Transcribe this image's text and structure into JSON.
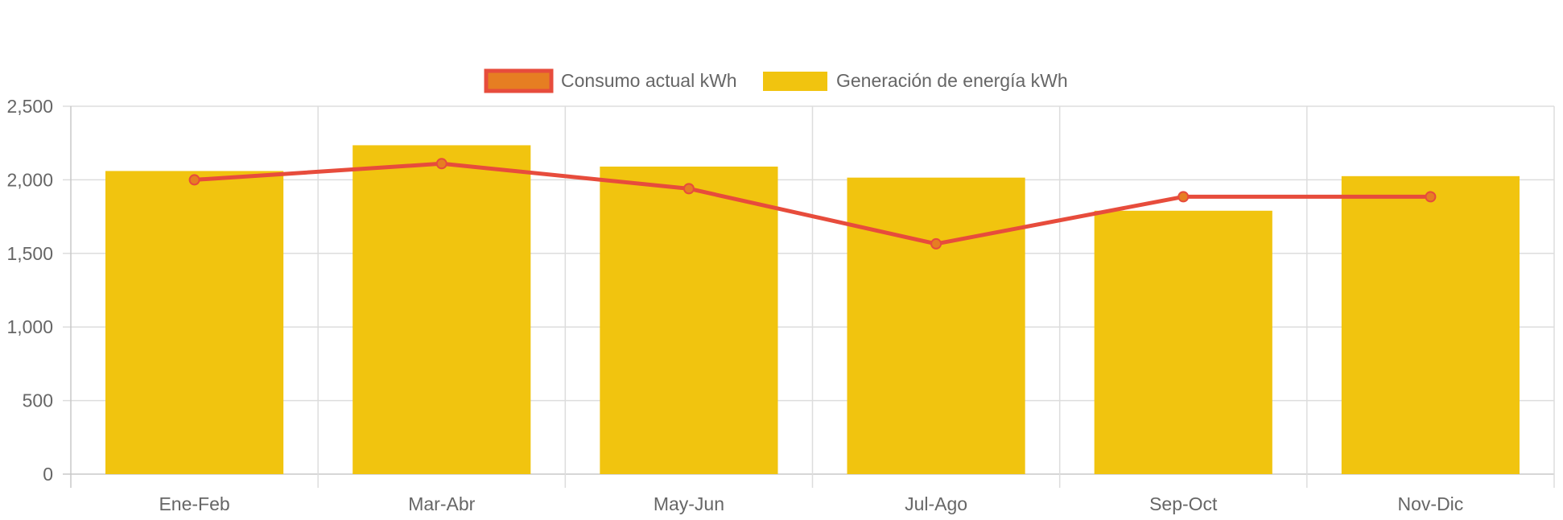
{
  "chart_data": {
    "type": "bar",
    "categories": [
      "Ene-Feb",
      "Mar-Abr",
      "May-Jun",
      "Jul-Ago",
      "Sep-Oct",
      "Nov-Dic"
    ],
    "series": [
      {
        "name": "Generación de energía kWh",
        "type": "bar",
        "color": "#F1C40F",
        "values": [
          2060,
          2235,
          2090,
          2015,
          1790,
          2025
        ]
      },
      {
        "name": "Consumo actual kWh",
        "type": "line",
        "color": "#E74C3C",
        "marker_fill": "#E67E22",
        "values": [
          2000,
          2110,
          1940,
          1565,
          1885,
          1885
        ]
      }
    ],
    "ylim": [
      0,
      2500
    ],
    "yticks": [
      "0",
      "500",
      "1,000",
      "1,500",
      "2,000",
      "2,500"
    ],
    "ytick_values": [
      0,
      500,
      1000,
      1500,
      2000,
      2500
    ],
    "grid": true,
    "legend_position": "top-center",
    "title": "",
    "xlabel": "",
    "ylabel": ""
  }
}
